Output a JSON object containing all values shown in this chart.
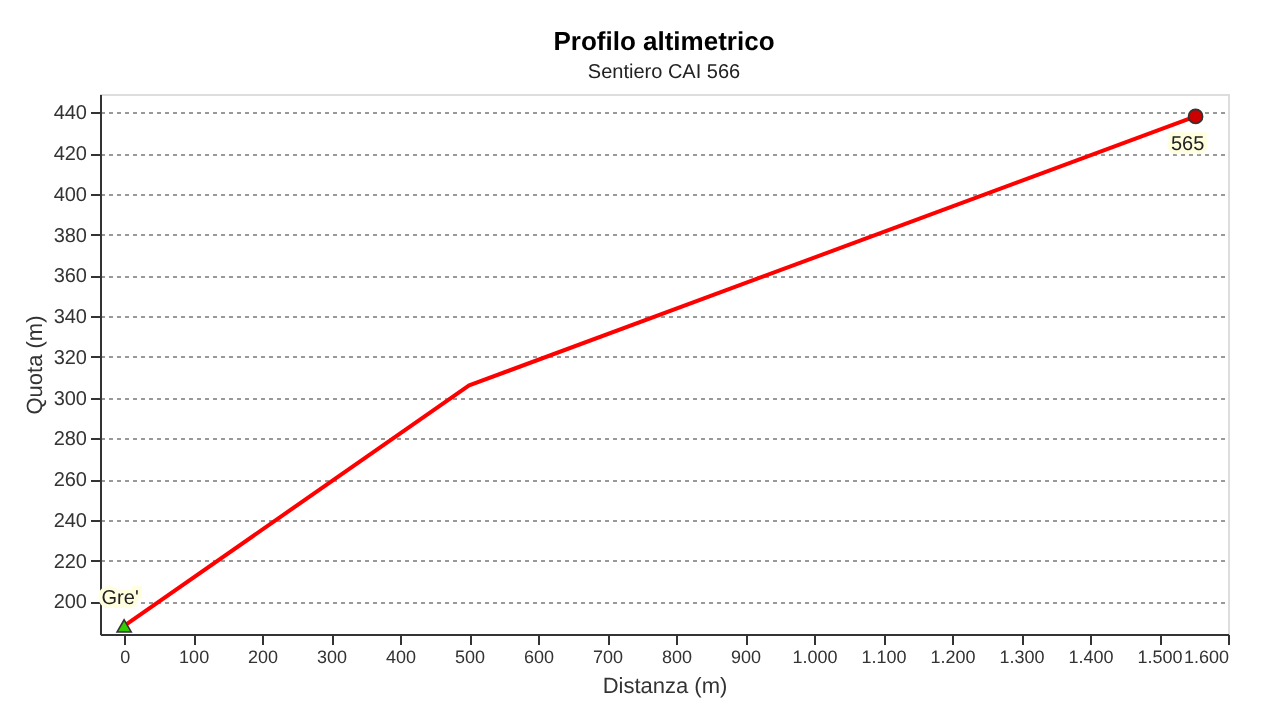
{
  "chart_data": {
    "type": "line",
    "title": "Profilo altimetrico",
    "subtitle": "Sentiero CAI 566",
    "xlabel": "Distanza (m)",
    "ylabel": "Quota (m)",
    "series": [
      {
        "color": "#ff0000",
        "x": [
          0,
          500,
          1553
        ],
        "values": [
          188,
          306,
          438
        ]
      },
      {
        "type": "scatter",
        "color": "#33cc00",
        "marker": "triangle",
        "x": [
          0
        ],
        "values": [
          188
        ]
      },
      {
        "type": "scatter",
        "color": "#cc0000",
        "marker": "circle",
        "x": [
          1553
        ],
        "values": [
          438
        ]
      }
    ],
    "annotations": [
      {
        "text": "Gre'",
        "x": 0,
        "y": 188
      },
      {
        "text": "565",
        "x": 1553,
        "y": 438
      }
    ],
    "xlim": [
      -35,
      1600
    ],
    "ylim": [
      184,
      449
    ],
    "xticks": [
      0,
      100,
      200,
      300,
      400,
      500,
      600,
      700,
      800,
      900,
      {
        "value": 1000,
        "label": "1.000"
      },
      {
        "value": 1100,
        "label": "1.100"
      },
      {
        "value": 1200,
        "label": "1.200"
      },
      {
        "value": 1300,
        "label": "1.300"
      },
      {
        "value": 1400,
        "label": "1.400"
      },
      {
        "value": 1500,
        "label": "1.500"
      },
      {
        "value": 1600,
        "label": "1.600"
      }
    ],
    "yticks": [
      200,
      220,
      240,
      260,
      280,
      300,
      320,
      340,
      360,
      380,
      400,
      420,
      440
    ],
    "grid": "y",
    "line_style": "solid",
    "marker": "none"
  }
}
